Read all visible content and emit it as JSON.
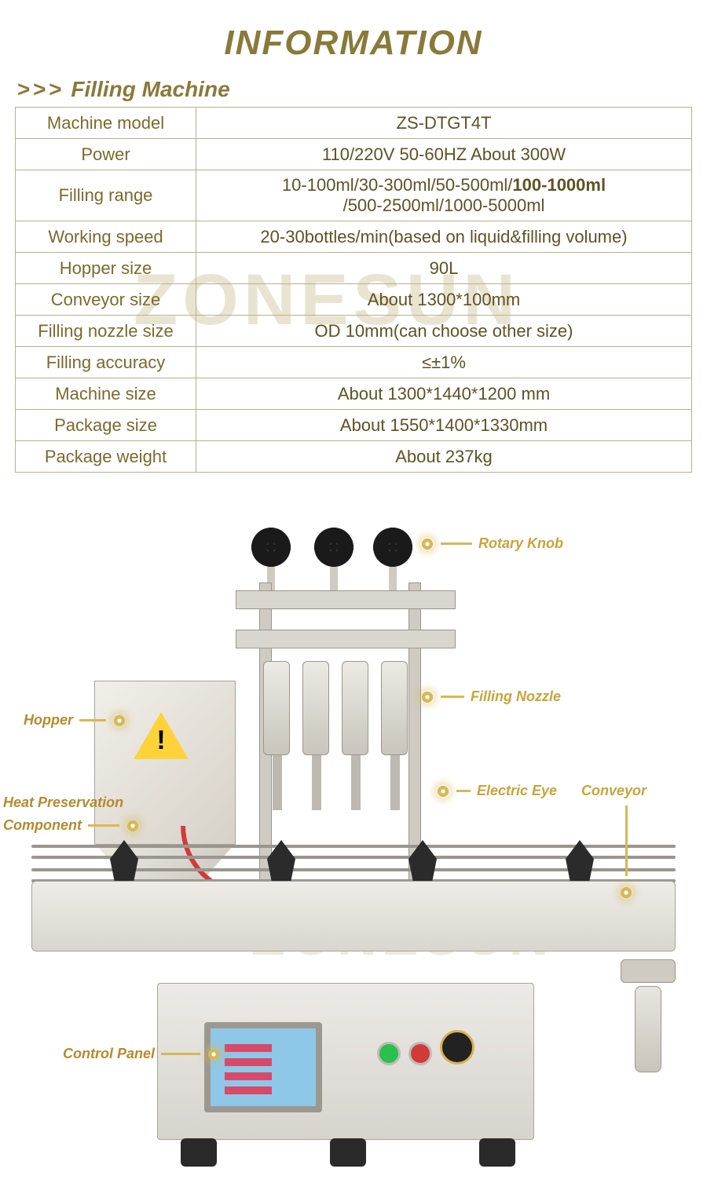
{
  "colors": {
    "accent": "#8a7a3a",
    "table_border": "#b9b08b",
    "table_text": "#5e5225",
    "callout_gold": "#c9a43a",
    "callout_brown": "#b68a2f",
    "hose_red": "#d23a3a",
    "btn_green": "#2bbf4e",
    "btn_red": "#d23a3a",
    "watermark": "#e9e4d1"
  },
  "title": "INFORMATION",
  "subheader_prefix": "> > >",
  "subheader": "Filling Machine",
  "watermark_text": "ZONESUN",
  "spec_table": {
    "rows": [
      {
        "label": "Machine model",
        "value_html": "ZS-DTGT4T"
      },
      {
        "label": "Power",
        "value_html": "110/220V 50-60HZ About 300W"
      },
      {
        "label": "Filling range",
        "value_html": "10-100ml/30-300ml/50-500ml/<b>100-1000ml</b><br>/500-2500ml/1000-5000ml"
      },
      {
        "label": "Working speed",
        "value_html": "20-30bottles/min(based on liquid&amp;filling volume)"
      },
      {
        "label": "Hopper size",
        "value_html": "90L"
      },
      {
        "label": "Conveyor size",
        "value_html": "About 1300*100mm"
      },
      {
        "label": "Filling nozzle size",
        "value_html": "OD 10mm(can choose other size)"
      },
      {
        "label": "Filling accuracy",
        "value_html": "≤±1%"
      },
      {
        "label": "Machine size",
        "value_html": "About 1300*1440*1200 mm"
      },
      {
        "label": "Package size",
        "value_html": "About 1550*1400*1330mm"
      },
      {
        "label": "Package weight",
        "value_html": "About 237kg"
      }
    ]
  },
  "callouts": {
    "rotary_knob": "Rotary Knob",
    "filling_nozzle": "Filling Nozzle",
    "electric_eye": "Electric Eye",
    "conveyor": "Conveyor",
    "hopper": "Hopper",
    "heat_preservation_l1": "Heat Preservation",
    "heat_preservation_l2": "Component",
    "control_panel": "Control Panel"
  }
}
